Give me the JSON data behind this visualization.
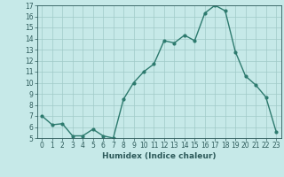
{
  "x": [
    0,
    1,
    2,
    3,
    4,
    5,
    6,
    7,
    8,
    9,
    10,
    11,
    12,
    13,
    14,
    15,
    16,
    17,
    18,
    19,
    20,
    21,
    22,
    23
  ],
  "y": [
    7.0,
    6.2,
    6.3,
    5.2,
    5.2,
    5.8,
    5.2,
    5.0,
    8.5,
    10.0,
    11.0,
    11.7,
    13.8,
    13.6,
    14.3,
    13.8,
    16.3,
    17.0,
    16.5,
    12.8,
    10.6,
    9.8,
    8.7,
    5.6
  ],
  "line_color": "#2d7a6e",
  "marker": "o",
  "markersize": 2.0,
  "linewidth": 1.0,
  "xlabel": "Humidex (Indice chaleur)",
  "ylim": [
    5,
    17
  ],
  "xlim": [
    -0.5,
    23.5
  ],
  "yticks": [
    5,
    6,
    7,
    8,
    9,
    10,
    11,
    12,
    13,
    14,
    15,
    16,
    17
  ],
  "xticks": [
    0,
    1,
    2,
    3,
    4,
    5,
    6,
    7,
    8,
    9,
    10,
    11,
    12,
    13,
    14,
    15,
    16,
    17,
    18,
    19,
    20,
    21,
    22,
    23
  ],
  "bg_color": "#c6e9e8",
  "grid_color": "#a0cac8",
  "font_color": "#2d5a5a",
  "xlabel_fontsize": 6.5,
  "tick_fontsize": 5.5
}
